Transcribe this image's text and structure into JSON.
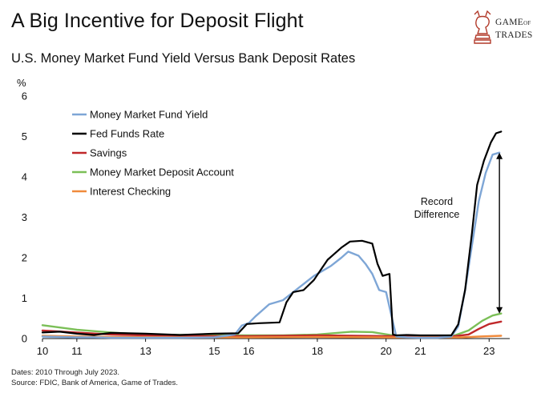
{
  "header": {
    "title": "A Big Incentive for Deposit Flight",
    "subtitle": "U.S. Money Market Fund Yield Versus Bank Deposit Rates"
  },
  "logo": {
    "line1": "GAME",
    "line1_small": "OF",
    "line2": "TRADES",
    "icon": "knight-chess-icon",
    "color": "#b23a2a"
  },
  "footer": {
    "dates": "Dates: 2010 Through July 2023.",
    "source": "Source: FDIC, Bank of America, Game of Trades."
  },
  "chart_data": {
    "type": "line",
    "ylabel": "%",
    "ylim": [
      0,
      6
    ],
    "xlim": [
      2010,
      2023.6
    ],
    "yticks": [
      "0",
      "1",
      "2",
      "3",
      "4",
      "5",
      "6"
    ],
    "xticks": [
      {
        "label": "10",
        "x": 2010
      },
      {
        "label": "11",
        "x": 2011
      },
      {
        "label": "13",
        "x": 2013
      },
      {
        "label": "15",
        "x": 2015
      },
      {
        "label": "16",
        "x": 2016
      },
      {
        "label": "18",
        "x": 2018
      },
      {
        "label": "20",
        "x": 2020
      },
      {
        "label": "21",
        "x": 2021
      },
      {
        "label": "23",
        "x": 2023
      }
    ],
    "grid": false,
    "legend_position": "top-left",
    "annotation": {
      "text_line1": "Record",
      "text_line2": "Difference",
      "arrow_from": 0.62,
      "arrow_to": 4.6,
      "arrow_x": 2023.3
    },
    "series": [
      {
        "name": "Money Market Fund Yield",
        "color": "#7ea6d6",
        "x": [
          2010.0,
          2010.5,
          2011.0,
          2011.5,
          2012.0,
          2013.0,
          2014.0,
          2015.0,
          2015.6,
          2015.8,
          2016.0,
          2016.2,
          2016.4,
          2016.6,
          2016.8,
          2017.0,
          2017.3,
          2017.6,
          2017.9,
          2018.1,
          2018.4,
          2018.7,
          2018.9,
          2019.2,
          2019.4,
          2019.6,
          2019.8,
          2020.0,
          2020.2,
          2020.3,
          2020.6,
          2021.0,
          2021.5,
          2021.9,
          2022.1,
          2022.3,
          2022.5,
          2022.7,
          2022.9,
          2023.1,
          2023.3
        ],
        "y": [
          0.05,
          0.04,
          0.03,
          0.03,
          0.02,
          0.02,
          0.02,
          0.03,
          0.1,
          0.32,
          0.38,
          0.55,
          0.7,
          0.85,
          0.9,
          0.95,
          1.15,
          1.35,
          1.55,
          1.65,
          1.8,
          2.0,
          2.15,
          2.05,
          1.85,
          1.6,
          1.2,
          1.15,
          0.4,
          0.05,
          0.03,
          0.02,
          0.02,
          0.05,
          0.3,
          1.2,
          2.3,
          3.4,
          4.1,
          4.55,
          4.6
        ]
      },
      {
        "name": "Fed Funds Rate",
        "color": "#000000",
        "x": [
          2010.0,
          2010.5,
          2011.0,
          2011.5,
          2012.0,
          2013.0,
          2014.0,
          2015.0,
          2015.7,
          2015.95,
          2016.3,
          2016.9,
          2017.1,
          2017.3,
          2017.6,
          2017.9,
          2018.1,
          2018.3,
          2018.5,
          2018.7,
          2018.95,
          2019.3,
          2019.6,
          2019.75,
          2019.9,
          2020.1,
          2020.2,
          2020.3,
          2020.6,
          2021.0,
          2021.5,
          2021.9,
          2022.1,
          2022.3,
          2022.5,
          2022.65,
          2022.85,
          2023.05,
          2023.2,
          2023.35
        ],
        "y": [
          0.15,
          0.17,
          0.12,
          0.09,
          0.14,
          0.12,
          0.09,
          0.12,
          0.13,
          0.36,
          0.38,
          0.4,
          0.9,
          1.15,
          1.2,
          1.45,
          1.7,
          1.95,
          2.1,
          2.25,
          2.4,
          2.42,
          2.35,
          1.85,
          1.55,
          1.6,
          0.1,
          0.08,
          0.09,
          0.08,
          0.08,
          0.08,
          0.35,
          1.2,
          2.6,
          3.8,
          4.4,
          4.85,
          5.08,
          5.12
        ]
      },
      {
        "name": "Savings",
        "color": "#c0282a",
        "x": [
          2010.0,
          2011.0,
          2012.0,
          2013.0,
          2014.0,
          2016.0,
          2018.0,
          2020.0,
          2021.5,
          2022.0,
          2022.4,
          2022.7,
          2023.0,
          2023.35
        ],
        "y": [
          0.2,
          0.15,
          0.1,
          0.08,
          0.06,
          0.06,
          0.08,
          0.06,
          0.05,
          0.06,
          0.1,
          0.24,
          0.36,
          0.42
        ]
      },
      {
        "name": "Money Market Deposit Account",
        "color": "#7bbf57",
        "x": [
          2010.0,
          2011.0,
          2012.0,
          2013.0,
          2014.0,
          2016.0,
          2017.0,
          2018.0,
          2019.0,
          2019.6,
          2020.2,
          2021.0,
          2022.0,
          2022.4,
          2022.8,
          2023.1,
          2023.35
        ],
        "y": [
          0.33,
          0.22,
          0.15,
          0.1,
          0.09,
          0.08,
          0.08,
          0.1,
          0.17,
          0.16,
          0.08,
          0.06,
          0.08,
          0.2,
          0.44,
          0.57,
          0.62
        ]
      },
      {
        "name": "Interest Checking",
        "color": "#f08a3c",
        "x": [
          2010.0,
          2011.0,
          2012.0,
          2014.0,
          2016.0,
          2018.0,
          2020.0,
          2021.5,
          2022.2,
          2022.7,
          2023.35
        ],
        "y": [
          0.07,
          0.05,
          0.04,
          0.03,
          0.03,
          0.04,
          0.03,
          0.03,
          0.03,
          0.05,
          0.07
        ]
      }
    ]
  }
}
